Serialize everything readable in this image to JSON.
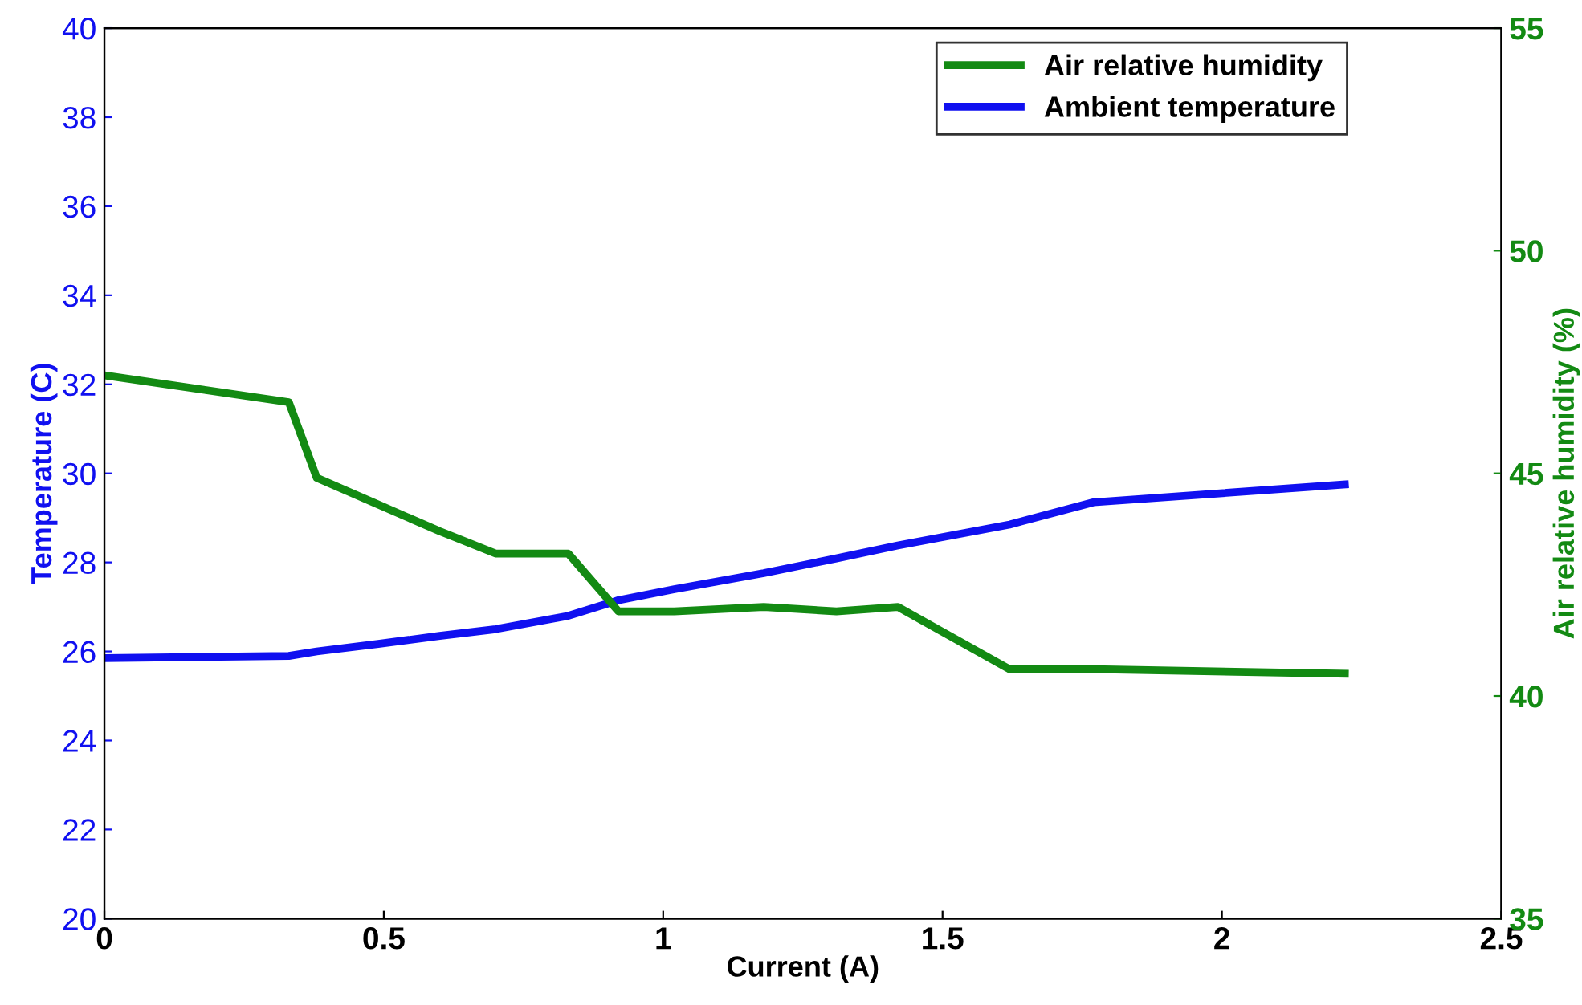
{
  "chart_data": {
    "type": "line",
    "xlabel": "Current (A)",
    "ylabel": "Temperature (C)",
    "y2label": "Air relative humidity (%)",
    "xlim": [
      0,
      2.5
    ],
    "xticks": [
      0,
      0.5,
      1,
      1.5,
      2,
      2.5
    ],
    "ylim": [
      20,
      40
    ],
    "yticks": [
      20,
      22,
      24,
      26,
      28,
      30,
      32,
      34,
      36,
      38,
      40
    ],
    "y2lim": [
      35,
      55
    ],
    "y2ticks": [
      35,
      40,
      45,
      50,
      55
    ],
    "legend": "top right",
    "grid": false,
    "marker": "none",
    "line_style": "solid",
    "series": [
      {
        "name": "Air relative humidity",
        "color": "#138a13",
        "axis": "y2",
        "x": [
          0,
          0.33,
          0.38,
          0.49,
          0.6,
          0.7,
          0.83,
          0.92,
          1.02,
          1.18,
          1.31,
          1.42,
          1.62,
          1.77,
          2.22
        ],
        "values": [
          47.2,
          46.6,
          44.9,
          44.3,
          43.7,
          43.2,
          43.2,
          41.9,
          41.9,
          42.0,
          41.9,
          42.0,
          40.6,
          40.6,
          40.5
        ]
      },
      {
        "name": "Ambient temperature",
        "color": "#1010f0",
        "axis": "y",
        "x": [
          0,
          0.33,
          0.38,
          0.49,
          0.6,
          0.7,
          0.83,
          0.92,
          1.02,
          1.18,
          1.31,
          1.42,
          1.62,
          1.77,
          2.22
        ],
        "values": [
          25.85,
          25.9,
          26.0,
          26.17,
          26.35,
          26.5,
          26.8,
          27.15,
          27.4,
          27.76,
          28.09,
          28.38,
          28.85,
          29.35,
          29.75
        ]
      }
    ]
  }
}
